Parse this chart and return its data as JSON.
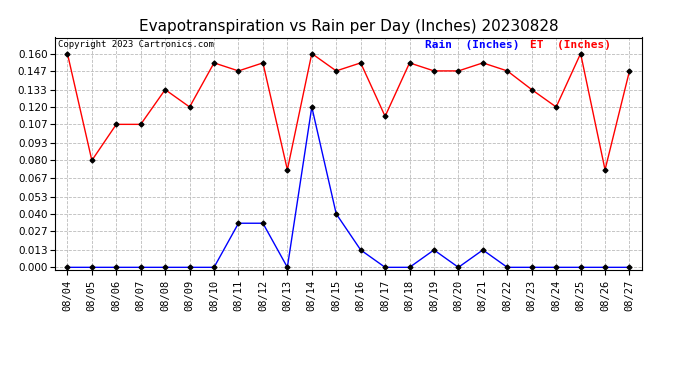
{
  "title": "Evapotranspiration vs Rain per Day (Inches) 20230828",
  "copyright": "Copyright 2023 Cartronics.com",
  "legend_rain": "Rain  (Inches)",
  "legend_et": "ET  (Inches)",
  "dates": [
    "08/04",
    "08/05",
    "08/06",
    "08/07",
    "08/08",
    "08/09",
    "08/10",
    "08/11",
    "08/12",
    "08/13",
    "08/14",
    "08/15",
    "08/16",
    "08/17",
    "08/18",
    "08/19",
    "08/20",
    "08/21",
    "08/22",
    "08/23",
    "08/24",
    "08/25",
    "08/26",
    "08/27"
  ],
  "et_values": [
    0.16,
    0.08,
    0.107,
    0.107,
    0.133,
    0.12,
    0.153,
    0.147,
    0.153,
    0.073,
    0.16,
    0.147,
    0.153,
    0.113,
    0.153,
    0.147,
    0.147,
    0.153,
    0.147,
    0.133,
    0.12,
    0.16,
    0.073,
    0.147
  ],
  "rain_values": [
    0.0,
    0.0,
    0.0,
    0.0,
    0.0,
    0.0,
    0.0,
    0.033,
    0.033,
    0.0,
    0.12,
    0.04,
    0.013,
    0.0,
    0.0,
    0.013,
    0.0,
    0.013,
    0.0,
    0.0,
    0.0,
    0.0,
    0.0,
    0.0
  ],
  "et_color": "#FF0000",
  "rain_color": "#0000FF",
  "background_color": "#FFFFFF",
  "grid_color": "#BBBBBB",
  "ylim_min": -0.002,
  "ylim_max": 0.172,
  "yticks": [
    0.0,
    0.013,
    0.027,
    0.04,
    0.053,
    0.067,
    0.08,
    0.093,
    0.107,
    0.12,
    0.133,
    0.147,
    0.16
  ],
  "title_fontsize": 11,
  "legend_fontsize": 8,
  "tick_fontsize": 7.5,
  "copyright_fontsize": 6.5,
  "marker": "D",
  "marker_size": 2.5,
  "marker_color": "#000000",
  "line_width": 1.0
}
